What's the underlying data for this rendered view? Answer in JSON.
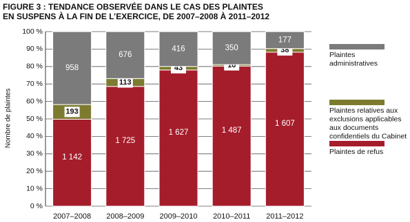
{
  "chart_data": {
    "type": "stacked-percent-bar",
    "title": "FIGURE 3 : TENDANCE OBSERVÉE DANS LE CAS DES PLAINTES\nEN SUSPENS À LA FIN DE L’EXERCICE, DE 2007–2008 À 2011–2012",
    "y_label": "Nombre de plaintes",
    "categories": [
      "2007–2008",
      "2008–2009",
      "2009–2010",
      "2010–2011",
      "2011–2012"
    ],
    "series": [
      {
        "name": "Plaintes de refus",
        "color": "#a51d2b",
        "values": [
          1142,
          1725,
          1627,
          1487,
          1607
        ],
        "value_labels": [
          "1 142",
          "1 725",
          "1 627",
          "1 487",
          "1 607"
        ]
      },
      {
        "name": "Plaintes relatives aux\nexclusions applicables\naux documents\nconfidentiels du Cabinet",
        "color": "#7d7b30",
        "values": [
          193,
          113,
          43,
          16,
          38
        ]
      },
      {
        "name": "Plaintes\nadministratives",
        "color": "#7b7b7b",
        "values": [
          958,
          676,
          416,
          350,
          177
        ]
      }
    ],
    "ylim": [
      0,
      100
    ],
    "yticks": [
      {
        "value": 0,
        "label": "0 %"
      },
      {
        "value": 10,
        "label": "10 %"
      },
      {
        "value": 20,
        "label": "20 %"
      },
      {
        "value": 30,
        "label": "30 %"
      },
      {
        "value": 40,
        "label": "40 %"
      },
      {
        "value": 50,
        "label": "50 %"
      },
      {
        "value": 60,
        "label": "60 %"
      },
      {
        "value": 70,
        "label": "70 %"
      },
      {
        "value": 80,
        "label": "80 %"
      },
      {
        "value": 90,
        "label": "90 %"
      },
      {
        "value": 100,
        "label": "100 %"
      }
    ],
    "grid": true
  }
}
